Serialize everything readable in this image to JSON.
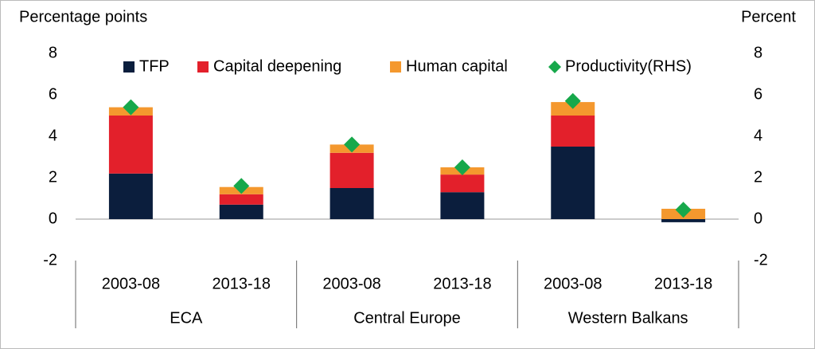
{
  "chart_data": {
    "type": "stacked-bar",
    "y_label": "Percentage points",
    "y2_label": "Percent",
    "categories": [
      "2003-08",
      "2013-18",
      "2003-08",
      "2013-18",
      "2003-08",
      "2013-18"
    ],
    "groups": [
      "ECA",
      "Central Europe",
      "Western Balkans"
    ],
    "series": [
      {
        "name": "TFP",
        "color": "#0b1e3d",
        "values": [
          2.2,
          0.7,
          1.5,
          1.3,
          3.5,
          -0.15
        ]
      },
      {
        "name": "Capital deepening",
        "color": "#e3202b",
        "values": [
          2.8,
          0.5,
          1.7,
          0.85,
          1.5,
          0
        ]
      },
      {
        "name": "Human capital",
        "color": "#f4982e",
        "values": [
          0.4,
          0.35,
          0.4,
          0.35,
          0.65,
          0.5
        ]
      },
      {
        "name": "Productivity(RHS)",
        "color": "#17a84b",
        "axis": "y2",
        "marker": "diamond",
        "values": [
          5.4,
          1.6,
          3.6,
          2.5,
          5.7,
          0.45
        ]
      }
    ],
    "ylim": [
      -2,
      8
    ],
    "yticks": [
      -2,
      0,
      2,
      4,
      6,
      8
    ],
    "y2lim": [
      -2,
      8
    ],
    "y2ticks": [
      -2,
      0,
      2,
      4,
      6,
      8
    ],
    "legend": "top"
  }
}
